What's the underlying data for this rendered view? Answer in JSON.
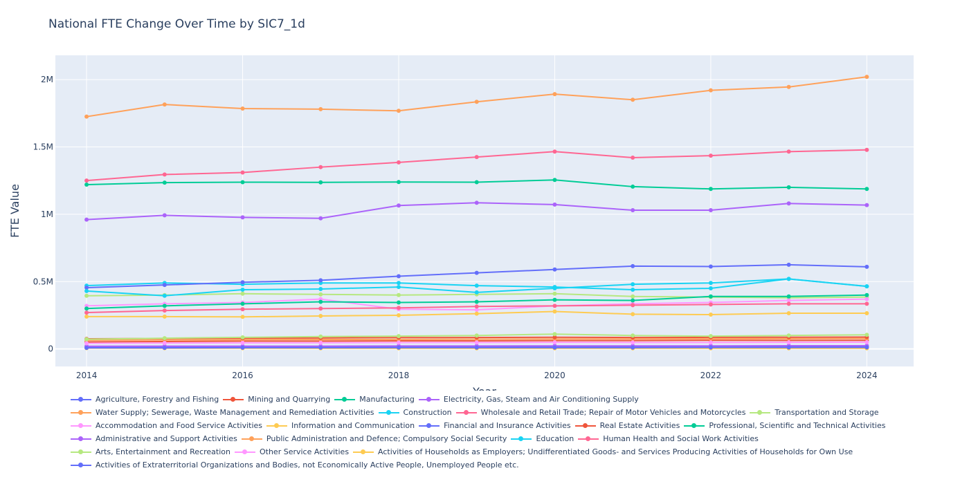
{
  "chart_data": {
    "type": "line",
    "title": "National FTE Change Over Time by SIC7_1d",
    "xlabel": "Year",
    "ylabel": "FTE Value",
    "xlim": [
      2013.6,
      2024.6
    ],
    "ylim": [
      -130000,
      2180000
    ],
    "x_ticks": [
      2014,
      2016,
      2018,
      2020,
      2022,
      2024
    ],
    "y_ticks": [
      0,
      500000,
      1000000,
      1500000,
      2000000
    ],
    "y_tick_labels": [
      "0",
      "0.5M",
      "1M",
      "1.5M",
      "2M"
    ],
    "grid": true,
    "legend_position": "bottom",
    "x": [
      2014,
      2015,
      2016,
      2017,
      2018,
      2019,
      2020,
      2021,
      2022,
      2023,
      2024
    ],
    "series": [
      {
        "name": "Agriculture, Forestry and Fishing",
        "color": "#636efa",
        "values": [
          15000,
          14000,
          14000,
          14000,
          14000,
          14000,
          15000,
          15000,
          14000,
          15000,
          15000
        ]
      },
      {
        "name": "Mining and Quarrying",
        "color": "#EF553B",
        "values": [
          52000,
          55000,
          58000,
          58000,
          60000,
          60000,
          62000,
          62000,
          64000,
          63000,
          64000
        ]
      },
      {
        "name": "Manufacturing",
        "color": "#00cc96",
        "values": [
          1220000,
          1235000,
          1238000,
          1237000,
          1239000,
          1238000,
          1255000,
          1205000,
          1188000,
          1200000,
          1188000
        ]
      },
      {
        "name": "Electricity, Gas, Steam and Air Conditioning Supply",
        "color": "#ab63fa",
        "values": [
          20000,
          21000,
          21000,
          21000,
          22000,
          22000,
          23000,
          23000,
          23000,
          24000,
          24000
        ]
      },
      {
        "name": "Water Supply; Sewerage, Waste Management and Remediation Activities",
        "color": "#FFA15A",
        "values": [
          65000,
          67000,
          69000,
          70000,
          71000,
          72000,
          74000,
          74000,
          75000,
          76000,
          77000
        ]
      },
      {
        "name": "Construction",
        "color": "#19d3f3",
        "values": [
          470000,
          490000,
          480000,
          490000,
          490000,
          470000,
          460000,
          440000,
          450000,
          520000,
          465000
        ]
      },
      {
        "name": "Wholesale and Retail Trade; Repair of Motor Vehicles and Motorcycles",
        "color": "#FF6692",
        "values": [
          1250000,
          1295000,
          1310000,
          1350000,
          1385000,
          1425000,
          1465000,
          1420000,
          1435000,
          1465000,
          1478000
        ]
      },
      {
        "name": "Transportation and Storage",
        "color": "#B6E880",
        "values": [
          395000,
          400000,
          410000,
          405000,
          400000,
          405000,
          410000,
          390000,
          385000,
          380000,
          385000
        ]
      },
      {
        "name": "Accommodation and Food Service Activities",
        "color": "#FF97FF",
        "values": [
          320000,
          335000,
          345000,
          370000,
          295000,
          290000,
          320000,
          335000,
          345000,
          360000,
          370000
        ]
      },
      {
        "name": "Information and Communication",
        "color": "#FECB52",
        "values": [
          240000,
          240000,
          238000,
          245000,
          250000,
          262000,
          278000,
          258000,
          255000,
          265000,
          265000
        ]
      },
      {
        "name": "Financial and Insurance Activities",
        "color": "#636efa",
        "values": [
          455000,
          475000,
          495000,
          510000,
          540000,
          565000,
          590000,
          615000,
          612000,
          625000,
          610000
        ]
      },
      {
        "name": "Real Estate Activities",
        "color": "#EF553B",
        "values": [
          75000,
          78000,
          80000,
          82000,
          84000,
          85000,
          87000,
          85000,
          86000,
          87000,
          88000
        ]
      },
      {
        "name": "Professional, Scientific and Technical Activities",
        "color": "#00cc96",
        "values": [
          300000,
          320000,
          335000,
          350000,
          345000,
          350000,
          365000,
          360000,
          390000,
          390000,
          400000
        ]
      },
      {
        "name": "Administrative and Support Activities",
        "color": "#ab63fa",
        "values": [
          960000,
          992000,
          977000,
          970000,
          1065000,
          1085000,
          1072000,
          1030000,
          1030000,
          1080000,
          1068000
        ]
      },
      {
        "name": "Public Administration and Defence; Compulsory Social Security",
        "color": "#FFA15A",
        "values": [
          1725000,
          1815000,
          1785000,
          1780000,
          1768000,
          1835000,
          1892000,
          1850000,
          1920000,
          1945000,
          2020000
        ]
      },
      {
        "name": "Education",
        "color": "#19d3f3",
        "values": [
          430000,
          395000,
          440000,
          445000,
          460000,
          420000,
          450000,
          480000,
          490000,
          520000,
          465000
        ]
      },
      {
        "name": "Human Health and Social Work Activities",
        "color": "#FF6692",
        "values": [
          270000,
          285000,
          295000,
          300000,
          305000,
          315000,
          320000,
          325000,
          330000,
          335000,
          335000
        ]
      },
      {
        "name": "Arts, Entertainment and Recreation",
        "color": "#B6E880",
        "values": [
          72000,
          80000,
          86000,
          92000,
          95000,
          100000,
          110000,
          100000,
          95000,
          100000,
          105000
        ]
      },
      {
        "name": "Other Service Activities",
        "color": "#FF97FF",
        "values": [
          42000,
          44000,
          45000,
          46000,
          47000,
          48000,
          49000,
          48000,
          48000,
          49000,
          50000
        ]
      },
      {
        "name": "Activities of Households as Employers; Undifferentiated Goods- and Services Producing Activities of Households for Own Use",
        "color": "#FECB52",
        "values": [
          6000,
          5500,
          5500,
          5000,
          5000,
          5000,
          5000,
          5000,
          5000,
          5000,
          5000
        ]
      },
      {
        "name": "Activities of Extraterritorial Organizations and Bodies, not Economically Active People, Unemployed People etc.",
        "color": "#636efa",
        "values": [
          8000,
          8000,
          9000,
          9000,
          10000,
          10000,
          10000,
          10000,
          11000,
          11000,
          12000
        ]
      }
    ],
    "legend_rows": [
      [
        0,
        1,
        2,
        3
      ],
      [
        4,
        5,
        6,
        7
      ],
      [
        8,
        9,
        10,
        11,
        12
      ],
      [
        13,
        14,
        15,
        16
      ],
      [
        17,
        18,
        19
      ],
      [
        20
      ]
    ]
  }
}
